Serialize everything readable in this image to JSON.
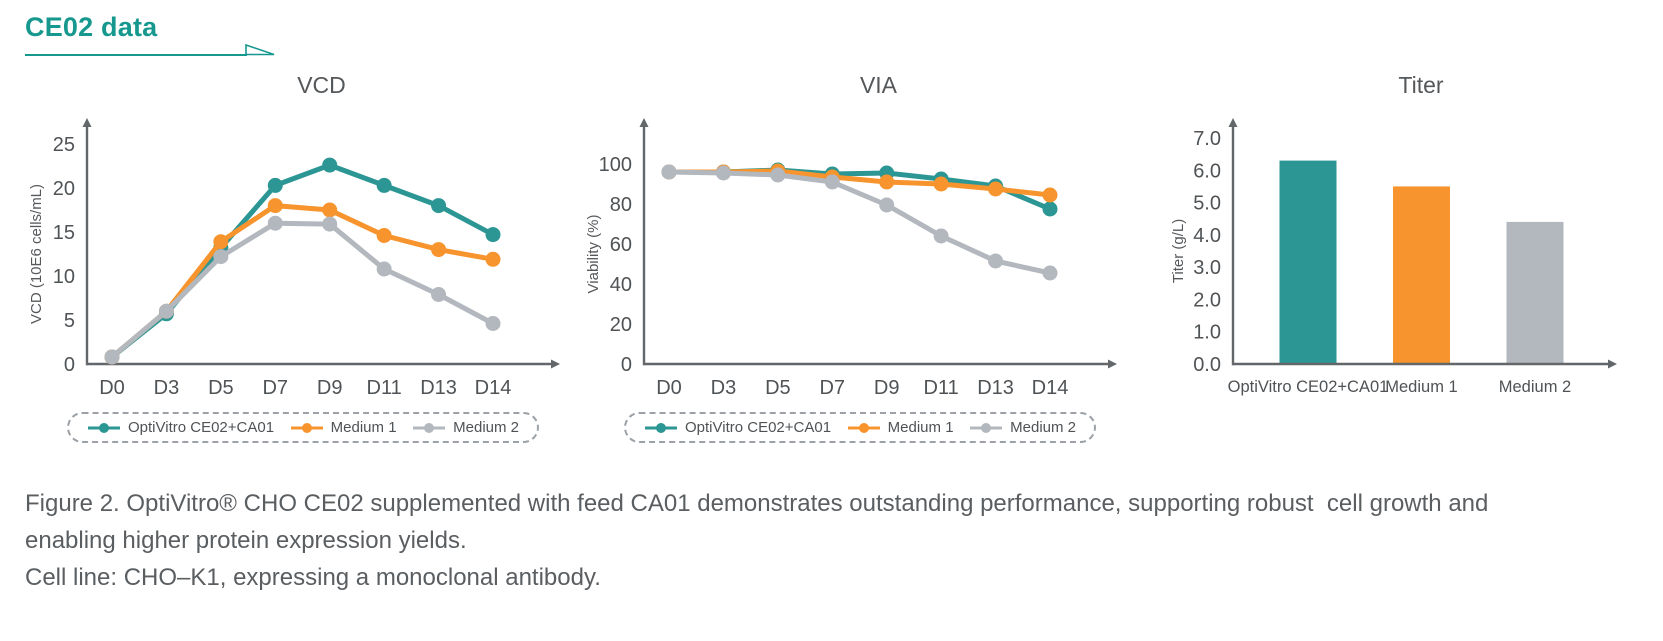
{
  "page": {
    "title": "CE02 data",
    "caption_line1": "Figure 2. OptiVitro® CHO CE02 supplemented with feed CA01 demonstrates outstanding performance, supporting robust  cell growth and",
    "caption_line2": "enabling higher protein expression yields.",
    "caption_line3": "Cell line: CHO–K1, expressing a monoclonal antibody."
  },
  "colors": {
    "brand_teal": "#17988F",
    "teal": "#2B9693",
    "orange": "#F7942D",
    "gray": "#B2B8BE",
    "axis": "#63676A",
    "text": "#54585B"
  },
  "legend": {
    "items": [
      {
        "label": "OptiVitro CE02+CA01",
        "color": "teal"
      },
      {
        "label": "Medium 1",
        "color": "orange"
      },
      {
        "label": "Medium 2",
        "color": "gray"
      }
    ]
  },
  "chart_data": [
    {
      "type": "line",
      "title": "VCD",
      "xlabel": "",
      "ylabel": "VCD (10E6 cells/mL)",
      "categories": [
        "D0",
        "D3",
        "D5",
        "D7",
        "D9",
        "D11",
        "D13",
        "D14"
      ],
      "ylim": [
        0,
        25
      ],
      "yticks": [
        0,
        5,
        10,
        15,
        20,
        25
      ],
      "grid": false,
      "legend_position": "bottom",
      "series": [
        {
          "name": "OptiVitro CE02+CA01",
          "color": "teal",
          "values": [
            0.8,
            5.7,
            13.2,
            20.3,
            22.6,
            20.3,
            18.0,
            14.7
          ]
        },
        {
          "name": "Medium 1",
          "color": "orange",
          "values": [
            0.8,
            6.0,
            13.9,
            18.0,
            17.5,
            14.6,
            13.0,
            11.9
          ]
        },
        {
          "name": "Medium 2",
          "color": "gray",
          "values": [
            0.8,
            6.0,
            12.2,
            16.0,
            15.9,
            10.8,
            7.9,
            4.6
          ]
        }
      ]
    },
    {
      "type": "line",
      "title": "VIA",
      "xlabel": "",
      "ylabel": "Viability (%)",
      "categories": [
        "D0",
        "D3",
        "D5",
        "D7",
        "D9",
        "D11",
        "D13",
        "D14"
      ],
      "ylim": [
        0,
        110
      ],
      "yticks": [
        0,
        20,
        40,
        60,
        80,
        100
      ],
      "grid": false,
      "legend_position": "bottom",
      "series": [
        {
          "name": "OptiVitro CE02+CA01",
          "color": "teal",
          "values": [
            96,
            96,
            97,
            95,
            95.5,
            92.5,
            89,
            77.5
          ]
        },
        {
          "name": "Medium 1",
          "color": "orange",
          "values": [
            96,
            96,
            96.5,
            93.5,
            91,
            90,
            87.5,
            84.5
          ]
        },
        {
          "name": "Medium 2",
          "color": "gray",
          "values": [
            96,
            95.5,
            94.5,
            91,
            79.5,
            64,
            51.5,
            45.5
          ]
        }
      ]
    },
    {
      "type": "bar",
      "title": "Titer",
      "xlabel": "",
      "ylabel": "Titer (g/L)",
      "categories": [
        "OptiVitro CE02+CA01",
        "Medium 1",
        "Medium 2"
      ],
      "values": [
        6.3,
        5.5,
        4.4
      ],
      "bar_colors": [
        "teal",
        "orange",
        "gray"
      ],
      "ylim": [
        0,
        7
      ],
      "yticks": [
        0,
        1,
        2,
        3,
        4,
        5,
        6,
        7
      ],
      "ytick_labels": [
        "0.0",
        "1.0",
        "2.0",
        "3.0",
        "4.0",
        "5.0",
        "6.0",
        "7.0"
      ],
      "grid": false,
      "legend_position": "none"
    }
  ]
}
